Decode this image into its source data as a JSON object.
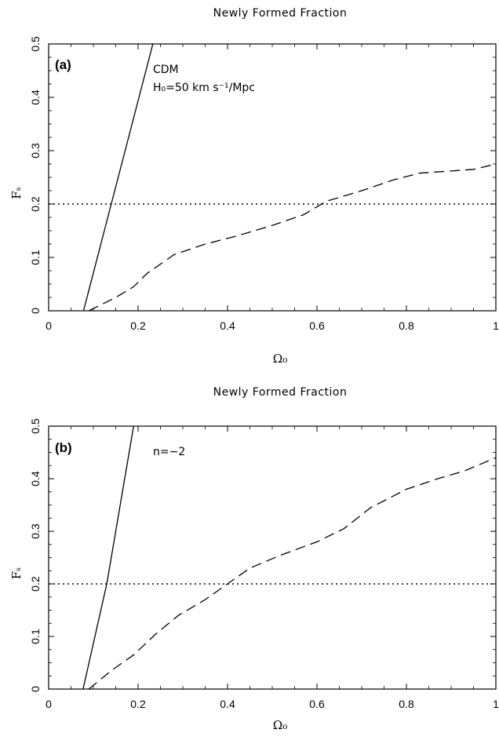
{
  "chart_data": [
    {
      "type": "line",
      "title": "Newly Formed Fraction",
      "panel_label": "(a)",
      "annotation": [
        "CDM",
        "H₀=50 km s⁻¹/Mpc"
      ],
      "xlabel": "Ω₀",
      "ylabel": "Fₛ",
      "xlim": [
        0,
        1
      ],
      "ylim": [
        0,
        0.5
      ],
      "xticks": [
        0,
        0.2,
        0.4,
        0.6,
        0.8,
        1
      ],
      "xtick_labels": [
        "0",
        "0.2",
        "0.4",
        "0.6",
        "0.8",
        "1"
      ],
      "yticks": [
        0,
        0.1,
        0.2,
        0.3,
        0.4,
        0.5
      ],
      "ytick_labels": [
        "0",
        "0.1",
        "0.2",
        "0.3",
        "0.4",
        "0.5"
      ],
      "grid": false,
      "series": [
        {
          "style": "solid",
          "x": [
            0.078,
            0.14,
            0.233
          ],
          "y": [
            0,
            0.2,
            0.5
          ]
        },
        {
          "style": "dashed",
          "x": [
            0.09,
            0.15,
            0.19,
            0.22,
            0.28,
            0.35,
            0.42,
            0.5,
            0.57,
            0.62,
            0.7,
            0.77,
            0.83,
            0.9,
            0.95,
            1.0
          ],
          "y": [
            0,
            0.025,
            0.045,
            0.07,
            0.105,
            0.125,
            0.14,
            0.16,
            0.18,
            0.205,
            0.225,
            0.245,
            0.258,
            0.262,
            0.265,
            0.275
          ]
        },
        {
          "style": "dotted",
          "x": [
            0,
            1
          ],
          "y": [
            0.2,
            0.2
          ]
        }
      ]
    },
    {
      "type": "line",
      "title": "Newly Formed Fraction",
      "panel_label": "(b)",
      "annotation": [
        "n=−2"
      ],
      "xlabel": "Ω₀",
      "ylabel": "Fₛ",
      "xlim": [
        0,
        1
      ],
      "ylim": [
        0,
        0.5
      ],
      "xticks": [
        0,
        0.2,
        0.4,
        0.6,
        0.8,
        1
      ],
      "xtick_labels": [
        "0",
        "0.2",
        "0.4",
        "0.6",
        "0.8",
        "1"
      ],
      "yticks": [
        0,
        0.1,
        0.2,
        0.3,
        0.4,
        0.5
      ],
      "ytick_labels": [
        "0",
        "0.1",
        "0.2",
        "0.3",
        "0.4",
        "0.5"
      ],
      "grid": false,
      "series": [
        {
          "style": "solid",
          "x": [
            0.077,
            0.13,
            0.19
          ],
          "y": [
            0,
            0.2,
            0.5
          ]
        },
        {
          "style": "dashed",
          "x": [
            0.09,
            0.14,
            0.19,
            0.24,
            0.29,
            0.35,
            0.4,
            0.45,
            0.52,
            0.6,
            0.66,
            0.72,
            0.8,
            0.87,
            0.93,
            1.0
          ],
          "y": [
            0,
            0.035,
            0.065,
            0.105,
            0.14,
            0.17,
            0.2,
            0.23,
            0.255,
            0.28,
            0.305,
            0.345,
            0.38,
            0.4,
            0.415,
            0.44
          ]
        },
        {
          "style": "dotted",
          "x": [
            0,
            1
          ],
          "y": [
            0.2,
            0.2
          ]
        }
      ]
    }
  ]
}
